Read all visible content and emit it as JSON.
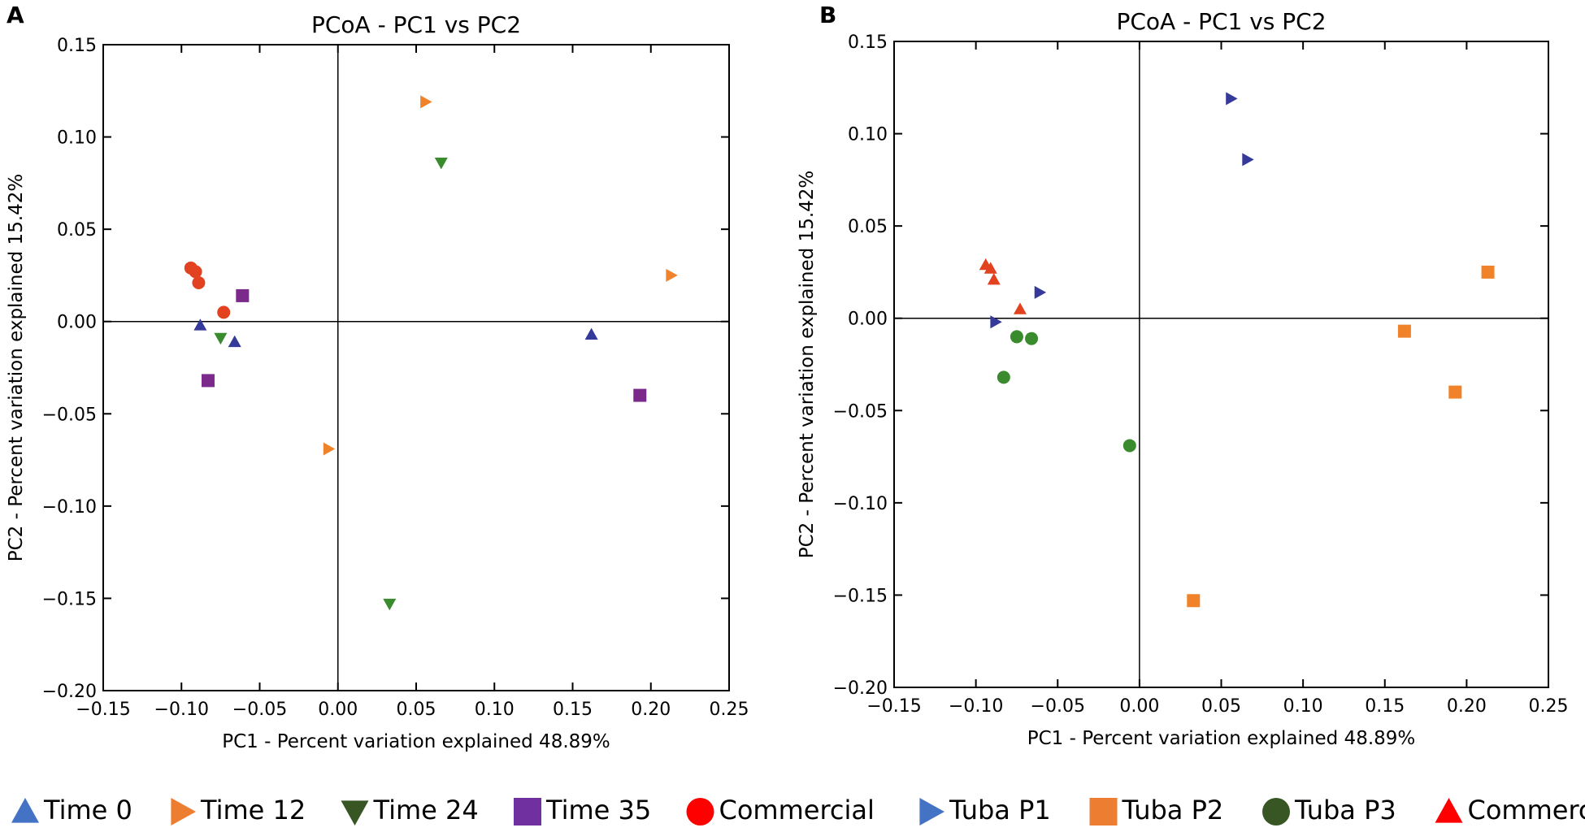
{
  "chart_data": [
    {
      "panel_label": "A",
      "type": "scatter",
      "title": "PCoA - PC1 vs PC2",
      "xlabel": "PC1 - Percent variation explained 48.89%",
      "ylabel": "PC2 - Percent variation explained 15.42%",
      "xlim": [
        -0.15,
        0.25
      ],
      "ylim": [
        -0.2,
        0.15
      ],
      "xticks": [
        "−0.15",
        "−0.10",
        "−0.05",
        "0.00",
        "0.05",
        "0.10",
        "0.15",
        "0.20",
        "0.25"
      ],
      "yticks": [
        "0.15",
        "0.10",
        "0.05",
        "0.00",
        "−0.05",
        "−0.10",
        "−0.15",
        "−0.20"
      ],
      "grid": false,
      "zero_lines": true,
      "legend_placement": "bottom",
      "series": [
        {
          "name": "Time 0",
          "marker": "triangle-up",
          "color": "#34399a",
          "legend_color": "#4472c4",
          "points": [
            [
              -0.088,
              -0.002
            ],
            [
              -0.066,
              -0.011
            ],
            [
              0.162,
              -0.007
            ]
          ]
        },
        {
          "name": "Time 12",
          "marker": "triangle-right",
          "color": "#f0832a",
          "legend_color": "#ed7d31",
          "points": [
            [
              0.056,
              0.119
            ],
            [
              0.213,
              0.025
            ],
            [
              -0.006,
              -0.069
            ]
          ]
        },
        {
          "name": "Time 24",
          "marker": "triangle-down",
          "color": "#3a8a2e",
          "legend_color": "#375623",
          "points": [
            [
              0.066,
              0.086
            ],
            [
              -0.075,
              -0.009
            ],
            [
              0.033,
              -0.153
            ]
          ]
        },
        {
          "name": "Time 35",
          "marker": "square",
          "color": "#7b2a8c",
          "legend_color": "#7030a0",
          "points": [
            [
              -0.061,
              0.014
            ],
            [
              -0.083,
              -0.032
            ],
            [
              0.193,
              -0.04
            ]
          ]
        },
        {
          "name": "Commercial",
          "marker": "circle",
          "color": "#e2421f",
          "legend_color": "#ff0000",
          "points": [
            [
              -0.094,
              0.029
            ],
            [
              -0.091,
              0.027
            ],
            [
              -0.089,
              0.021
            ],
            [
              -0.073,
              0.005
            ]
          ]
        }
      ]
    },
    {
      "panel_label": "B",
      "type": "scatter",
      "title": "PCoA - PC1 vs PC2",
      "xlabel": "PC1 - Percent variation explained 48.89%",
      "ylabel": "PC2 - Percent variation explained 15.42%",
      "xlim": [
        -0.15,
        0.25
      ],
      "ylim": [
        -0.2,
        0.15
      ],
      "xticks": [
        "−0.15",
        "−0.10",
        "−0.05",
        "0.00",
        "0.05",
        "0.10",
        "0.15",
        "0.20",
        "0.25"
      ],
      "yticks": [
        "0.15",
        "0.10",
        "0.05",
        "0.00",
        "−0.05",
        "−0.10",
        "−0.15",
        "−0.20"
      ],
      "grid": false,
      "zero_lines": true,
      "legend_placement": "bottom",
      "series": [
        {
          "name": "Tuba P1",
          "marker": "triangle-right",
          "color": "#34399a",
          "legend_color": "#4472c4",
          "points": [
            [
              0.056,
              0.119
            ],
            [
              0.066,
              0.086
            ],
            [
              -0.061,
              0.014
            ],
            [
              -0.088,
              -0.002
            ]
          ]
        },
        {
          "name": "Tuba P2",
          "marker": "square",
          "color": "#f0832a",
          "legend_color": "#ed7d31",
          "points": [
            [
              0.213,
              0.025
            ],
            [
              0.162,
              -0.007
            ],
            [
              0.193,
              -0.04
            ],
            [
              0.033,
              -0.153
            ]
          ]
        },
        {
          "name": "Tuba P3",
          "marker": "circle",
          "color": "#3a8a2e",
          "legend_color": "#375623",
          "points": [
            [
              -0.075,
              -0.01
            ],
            [
              -0.066,
              -0.011
            ],
            [
              -0.083,
              -0.032
            ],
            [
              -0.006,
              -0.069
            ]
          ]
        },
        {
          "name": "Commercial",
          "marker": "triangle-up",
          "color": "#e2421f",
          "legend_color": "#ff0000",
          "points": [
            [
              -0.094,
              0.029
            ],
            [
              -0.091,
              0.027
            ],
            [
              -0.089,
              0.021
            ],
            [
              -0.073,
              0.005
            ]
          ]
        }
      ]
    }
  ]
}
